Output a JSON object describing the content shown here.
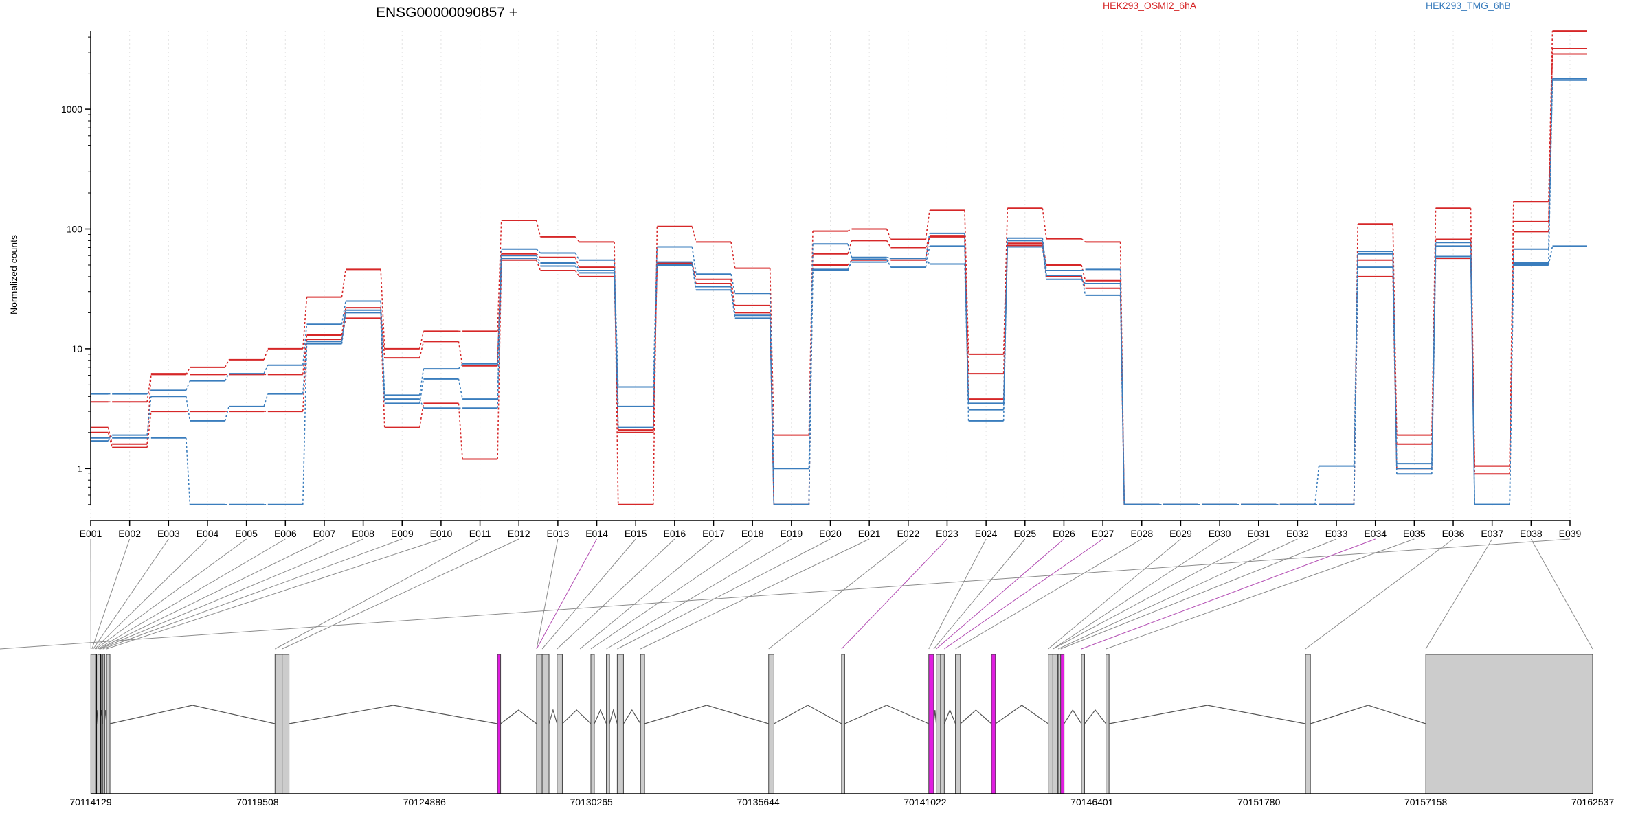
{
  "chart_data": {
    "type": "line",
    "title": "ENSG00000090857 +",
    "ylabel": "Normalized counts",
    "yscale": "log",
    "yticks": [
      "1",
      "10",
      "100",
      "1000"
    ],
    "legend": [
      {
        "label": "HEK293_OSMI2_6hA",
        "color": "#d62728"
      },
      {
        "label": "HEK293_TMG_6hB",
        "color": "#3a7dbd"
      }
    ],
    "categories": [
      "E001",
      "E002",
      "E003",
      "E004",
      "E005",
      "E006",
      "E007",
      "E008",
      "E009",
      "E010",
      "E011",
      "E012",
      "E013",
      "E014",
      "E015",
      "E016",
      "E017",
      "E018",
      "E019",
      "E020",
      "E021",
      "E022",
      "E023",
      "E024",
      "E025",
      "E026",
      "E027",
      "E028",
      "E029",
      "E030",
      "E031",
      "E032",
      "E033",
      "E034",
      "E035",
      "E036",
      "E037",
      "E038",
      "E039"
    ],
    "series": [
      {
        "group": "HEK293_OSMI2_6hA",
        "color": "#d62728",
        "values": [
          2.2,
          1.6,
          6.1,
          7,
          8.1,
          10,
          27,
          46,
          10,
          14,
          14,
          118,
          86,
          78,
          0.5,
          105,
          78,
          47,
          1.9,
          96,
          100,
          82,
          143,
          9,
          149,
          83,
          78,
          0.5,
          0.5,
          0.5,
          0.5,
          0.5,
          0.5,
          110,
          1.9,
          149,
          1.05,
          170,
          4500
        ]
      },
      {
        "group": "HEK293_OSMI2_6hA",
        "color": "#d62728",
        "values": [
          3.6,
          3.6,
          6.2,
          6.1,
          6.1,
          6.1,
          13,
          22,
          8.4,
          11.5,
          7.2,
          62,
          58,
          48,
          2,
          52,
          38,
          23,
          0.5,
          62,
          80,
          70,
          86,
          6.2,
          76,
          50,
          37,
          0.5,
          0.5,
          0.5,
          0.5,
          0.5,
          0.5,
          55,
          1.6,
          82,
          0.9,
          95,
          3200
        ]
      },
      {
        "group": "HEK293_OSMI2_6hA",
        "color": "#d62728",
        "values": [
          2,
          1.5,
          3,
          3,
          3,
          3,
          12,
          18,
          2.2,
          3.5,
          1.2,
          55,
          45,
          40,
          2.1,
          50,
          35,
          20,
          0.5,
          50,
          55,
          55,
          88,
          3.8,
          73,
          40,
          32,
          0.5,
          0.5,
          0.5,
          0.5,
          0.5,
          0.5,
          40,
          1,
          57,
          1.05,
          115,
          2900
        ]
      },
      {
        "group": "HEK293_TMG_6hB",
        "color": "#3a7dbd",
        "values": [
          4.2,
          4.2,
          4.5,
          5.4,
          6.2,
          7.3,
          16,
          25,
          4.1,
          6.8,
          7.5,
          68,
          63,
          55,
          4.8,
          71,
          42,
          29,
          1,
          75,
          58,
          57,
          92,
          2.5,
          84,
          45,
          46,
          0.5,
          0.5,
          0.5,
          0.5,
          0.5,
          1.05,
          65,
          1.1,
          77,
          0.5,
          68,
          1800
        ]
      },
      {
        "group": "HEK293_TMG_6hB",
        "color": "#3a7dbd",
        "values": [
          1.8,
          1.8,
          1.8,
          0.5,
          0.5,
          0.5,
          11,
          20,
          3.5,
          5.6,
          3.8,
          60,
          52,
          45,
          3.3,
          50,
          31,
          18,
          0.5,
          45,
          56,
          48,
          72,
          3.1,
          80,
          41,
          28,
          0.5,
          0.5,
          0.5,
          0.5,
          0.5,
          0.5,
          62,
          0.9,
          72,
          0.5,
          50,
          72
        ]
      },
      {
        "group": "HEK293_TMG_6hB",
        "color": "#3a7dbd",
        "values": [
          1.7,
          1.9,
          4,
          2.5,
          3.3,
          4.2,
          11.5,
          21,
          3.8,
          3.2,
          3.2,
          57,
          49,
          43,
          2.2,
          53,
          33,
          19,
          0.5,
          46,
          53,
          57,
          51,
          3.5,
          71,
          38,
          35,
          0.5,
          0.5,
          0.5,
          0.5,
          0.5,
          0.5,
          48,
          1,
          59,
          0.5,
          52,
          1750
        ]
      }
    ],
    "genome": {
      "coordinate_ticks": [
        "70114129",
        "70119508",
        "70124886",
        "70130265",
        "70135644",
        "70141022",
        "70146401",
        "70151780",
        "70157158",
        "70162537"
      ],
      "coord_min": 70114129,
      "coord_max": 70162537,
      "exon_starts": [
        70114135,
        70114360,
        70114520,
        70114640,
        70120070,
        70120300,
        70127240,
        70128500,
        70128680,
        70129160,
        70130250,
        70130750,
        70131100,
        70131850,
        70135980,
        70138330,
        70141140,
        70141380,
        70141520,
        70142000,
        70143160,
        70144990,
        70145140,
        70145310,
        70145390,
        70146060,
        70146850,
        70153280,
        70157158
      ],
      "exon_ends": [
        70114300,
        70114440,
        70114560,
        70114750,
        70120300,
        70120520,
        70127340,
        70128680,
        70128900,
        70129330,
        70130360,
        70130850,
        70131300,
        70131980,
        70136150,
        70138430,
        70141300,
        70141520,
        70141640,
        70142160,
        70143290,
        70145140,
        70145290,
        70145390,
        70145500,
        70146160,
        70146950,
        70153440,
        70162537
      ],
      "highlighted_exons": [
        6,
        16,
        20,
        24
      ],
      "exon_bin_coords": [
        70114135,
        70114170,
        70114210,
        70114260,
        70114300,
        70114360,
        70114400,
        70114440,
        70114520,
        70114640,
        70120070,
        70120300,
        70127240,
        70128500,
        70128500,
        70128680,
        70129160,
        70129900,
        70130250,
        70130750,
        70131100,
        70131850,
        70135980,
        70138330,
        70141140,
        70141300,
        70141380,
        70141520,
        70141640,
        70142000,
        70143160,
        70144990,
        70145140,
        70145140,
        70145310,
        70145390,
        70146060,
        70146850,
        70153280,
        70157158,
        70162537
      ],
      "bin_line_map": [
        0,
        1,
        2,
        3,
        4,
        5,
        6,
        7,
        8,
        9,
        10,
        11,
        13,
        14,
        15,
        16,
        17,
        18,
        19,
        20,
        21,
        22,
        23,
        24,
        25,
        26,
        28,
        29,
        31,
        32,
        33,
        34,
        35,
        36,
        37,
        38,
        39,
        40,
        41
      ],
      "highlighted_bins": [
        13,
        22,
        25,
        26,
        33
      ]
    }
  }
}
